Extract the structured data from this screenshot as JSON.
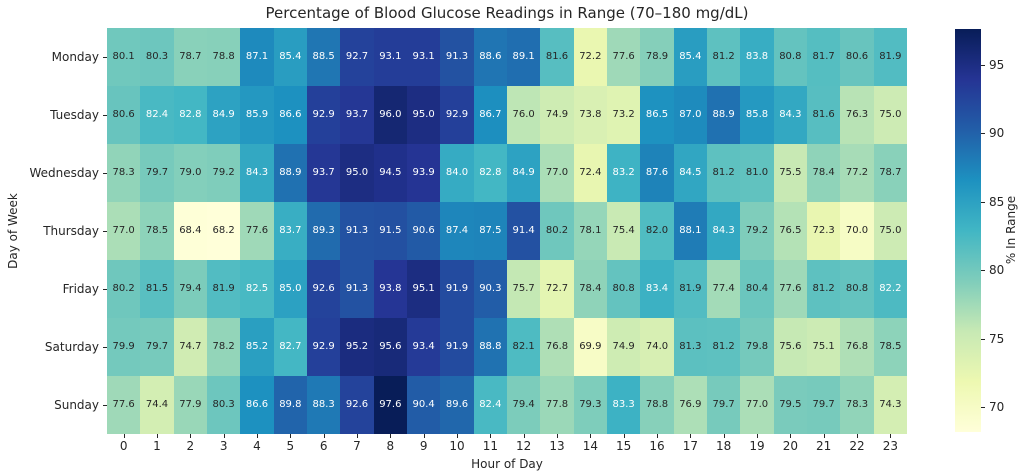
{
  "chart_data": {
    "type": "heatmap",
    "title": "Percentage of Blood Glucose Readings in Range (70–180 mg/dL)",
    "xlabel": "Hour of Day",
    "ylabel": "Day of Week",
    "colorbar_label": "% In Range",
    "colorbar_ticks": [
      "70",
      "75",
      "80",
      "85",
      "90",
      "95"
    ],
    "colormap_name": "YlGnBu",
    "colormap_stops": [
      "#ffffd9",
      "#edf8b1",
      "#c7e9b4",
      "#7fcdbb",
      "#41b6c4",
      "#1d91c0",
      "#225ea8",
      "#253494",
      "#081d58"
    ],
    "vmin": 68.2,
    "vmax": 97.6,
    "annot_dark_color": "#262626",
    "annot_light_color": "#ffffff",
    "luminance_threshold": 0.408,
    "x_categories": [
      "0",
      "1",
      "2",
      "3",
      "4",
      "5",
      "6",
      "7",
      "8",
      "9",
      "10",
      "11",
      "12",
      "13",
      "14",
      "15",
      "16",
      "17",
      "18",
      "19",
      "20",
      "21",
      "22",
      "23"
    ],
    "y_categories": [
      "Monday",
      "Tuesday",
      "Wednesday",
      "Thursday",
      "Friday",
      "Saturday",
      "Sunday"
    ],
    "values": [
      [
        80.1,
        80.3,
        78.7,
        78.8,
        87.1,
        85.4,
        88.5,
        92.7,
        93.1,
        93.1,
        91.3,
        88.6,
        89.1,
        81.6,
        72.2,
        77.6,
        78.9,
        85.4,
        81.2,
        83.8,
        80.8,
        81.7,
        80.6,
        81.9
      ],
      [
        80.6,
        82.4,
        82.8,
        84.9,
        85.9,
        86.6,
        92.9,
        93.7,
        96.0,
        95.0,
        92.9,
        86.7,
        76.0,
        74.9,
        73.8,
        73.2,
        86.5,
        87.0,
        88.9,
        85.8,
        84.3,
        81.6,
        76.3,
        75.0
      ],
      [
        78.3,
        79.7,
        79.0,
        79.2,
        84.3,
        88.9,
        93.7,
        95.0,
        94.5,
        93.9,
        84.0,
        82.8,
        84.9,
        77.0,
        72.4,
        83.2,
        87.6,
        84.5,
        81.2,
        81.0,
        75.5,
        78.4,
        77.2,
        78.7
      ],
      [
        77.0,
        78.5,
        68.4,
        68.2,
        77.6,
        83.7,
        89.3,
        91.3,
        91.5,
        90.6,
        87.4,
        87.5,
        91.4,
        80.2,
        78.1,
        75.4,
        82.0,
        88.1,
        84.3,
        79.2,
        76.5,
        72.3,
        70.0,
        75.0
      ],
      [
        80.2,
        81.5,
        79.4,
        81.9,
        82.5,
        85.0,
        92.6,
        91.3,
        93.8,
        95.1,
        91.9,
        90.3,
        75.7,
        72.7,
        78.4,
        80.8,
        83.4,
        81.9,
        77.4,
        80.4,
        77.6,
        81.2,
        80.8,
        82.2
      ],
      [
        79.9,
        79.7,
        74.7,
        78.2,
        85.2,
        82.7,
        92.9,
        95.2,
        95.6,
        93.4,
        91.9,
        88.8,
        82.1,
        76.8,
        69.9,
        74.9,
        74.0,
        81.3,
        81.2,
        79.8,
        75.6,
        75.1,
        76.8,
        78.5
      ],
      [
        77.6,
        74.4,
        77.9,
        80.3,
        86.6,
        89.8,
        88.3,
        92.6,
        97.6,
        90.4,
        89.6,
        82.4,
        79.4,
        77.8,
        79.3,
        83.3,
        78.8,
        76.9,
        79.7,
        77.0,
        79.5,
        79.7,
        78.3,
        74.3
      ]
    ]
  }
}
